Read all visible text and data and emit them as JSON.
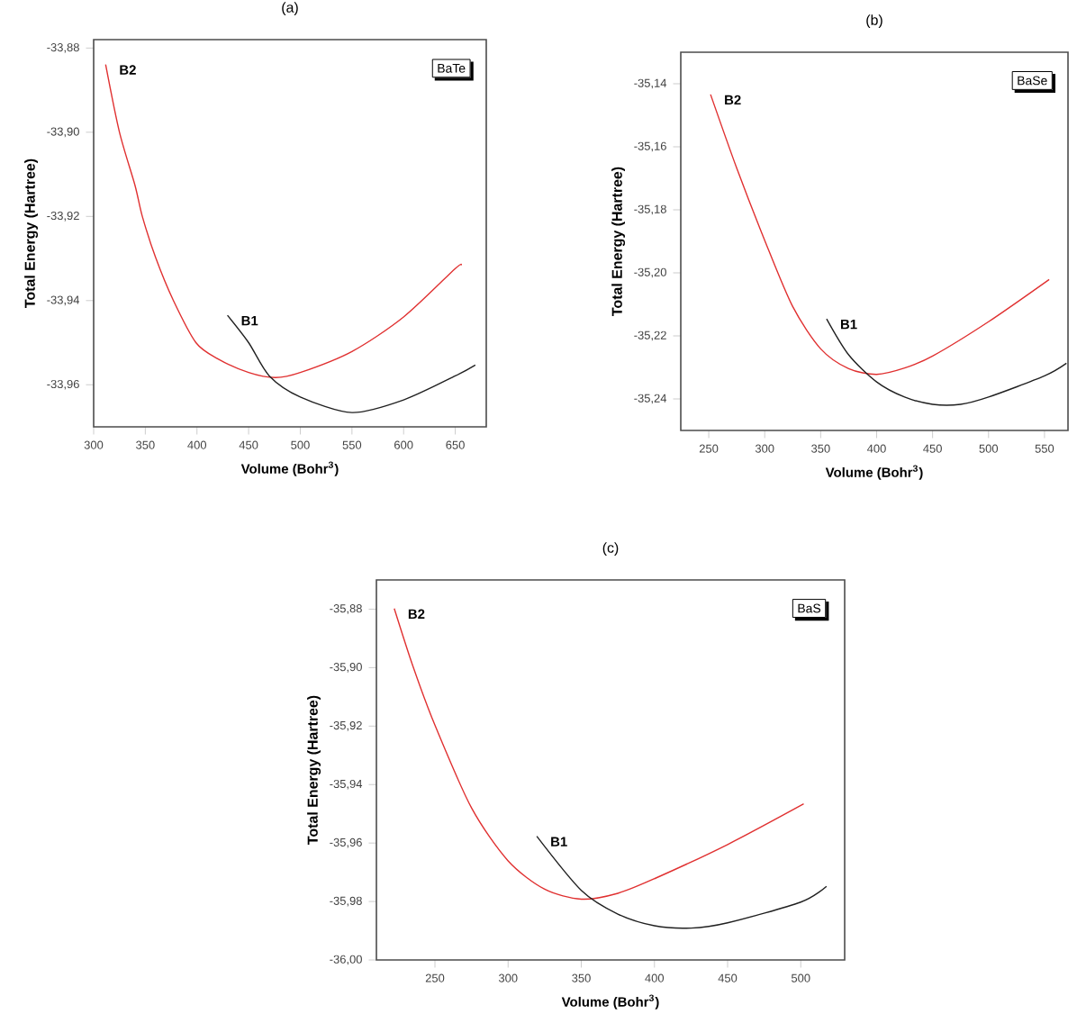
{
  "chart_data": [
    {
      "type": "line",
      "title": "(a)",
      "xlabel": "Volume (Bohr$^{3}$)",
      "ylabel": "Total Energy (Hartree)",
      "annotations": [
        "BaTe"
      ],
      "xlim": [
        300,
        680
      ],
      "ylim": [
        -33.97,
        -33.878
      ],
      "xticks": [
        300,
        350,
        400,
        450,
        500,
        550,
        600,
        650
      ],
      "yticks": [
        {
          "value": -33.96,
          "label": "-33,96"
        },
        {
          "value": -33.94,
          "label": "-33,94"
        },
        {
          "value": -33.92,
          "label": "-33,92"
        },
        {
          "value": -33.9,
          "label": "-33,90"
        },
        {
          "value": -33.88,
          "label": "-33,88"
        }
      ],
      "series": [
        {
          "name": "B2",
          "color": "#e03030",
          "x": [
            311.6,
            325,
            340,
            347,
            360,
            377,
            399,
            420,
            450,
            476,
            500,
            550,
            600,
            650,
            655.6
          ],
          "values": [
            -33.8839,
            -33.9,
            -33.9126,
            -33.9199,
            -33.9298,
            -33.9399,
            -33.95,
            -33.9538,
            -33.9571,
            -33.9583,
            -33.9571,
            -33.9521,
            -33.9439,
            -33.9324,
            -33.9316
          ]
        },
        {
          "name": "B1",
          "color": "#202020",
          "x": [
            429.5,
            450,
            470,
            500,
            550,
            600,
            650,
            669.4
          ],
          "values": [
            -33.9435,
            -33.95,
            -33.9579,
            -33.9629,
            -33.9666,
            -33.9636,
            -33.9579,
            -33.9553
          ]
        }
      ]
    },
    {
      "type": "line",
      "title": "(b)",
      "xlabel": "Volume (Bohr$^{3}$)",
      "ylabel": "Total Energy (Hartree)",
      "annotations": [
        "BaSe"
      ],
      "xlim": [
        225,
        571
      ],
      "ylim": [
        -35.25,
        -35.13
      ],
      "xticks": [
        250,
        300,
        350,
        400,
        450,
        500,
        550
      ],
      "yticks": [
        {
          "value": -35.24,
          "label": "-35,24"
        },
        {
          "value": -35.22,
          "label": "-35,22"
        },
        {
          "value": -35.2,
          "label": "-35,20"
        },
        {
          "value": -35.18,
          "label": "-35,18"
        },
        {
          "value": -35.16,
          "label": "-35,16"
        },
        {
          "value": -35.14,
          "label": "-35,14"
        }
      ],
      "series": [
        {
          "name": "B2",
          "color": "#e03030",
          "x": [
            251.6,
            275,
            300,
            325,
            350,
            375,
            400,
            425,
            450,
            500,
            554.2
          ],
          "values": [
            -35.1434,
            -35.1668,
            -35.1897,
            -35.2107,
            -35.2241,
            -35.2304,
            -35.2322,
            -35.2302,
            -35.2264,
            -35.2155,
            -35.2021
          ]
        },
        {
          "name": "B1",
          "color": "#202020",
          "x": [
            355.3,
            375,
            400,
            425,
            450,
            475,
            500,
            550,
            569.6
          ],
          "values": [
            -35.2146,
            -35.226,
            -35.2346,
            -35.2394,
            -35.2417,
            -35.2417,
            -35.2394,
            -35.2327,
            -35.2287
          ]
        }
      ]
    },
    {
      "type": "line",
      "title": "(c)",
      "xlabel": "Volume (Bohr$^{3}$)",
      "ylabel": "Total Energy (Hartree)",
      "annotations": [
        "BaS"
      ],
      "xlim": [
        210,
        530
      ],
      "ylim": [
        -36.0,
        -35.87
      ],
      "xticks": [
        250,
        300,
        350,
        400,
        450,
        500
      ],
      "yticks": [
        {
          "value": -36.0,
          "label": "-36,00"
        },
        {
          "value": -35.98,
          "label": "-35,98"
        },
        {
          "value": -35.96,
          "label": "-35,96"
        },
        {
          "value": -35.94,
          "label": "-35,94"
        },
        {
          "value": -35.92,
          "label": "-35,92"
        },
        {
          "value": -35.9,
          "label": "-35,90"
        },
        {
          "value": -35.88,
          "label": "-35,88"
        }
      ],
      "series": [
        {
          "name": "B2",
          "color": "#e03030",
          "x": [
            222.2,
            235,
            250,
            275,
            300,
            325,
            350,
            375,
            400,
            450,
            502
          ],
          "values": [
            -35.8798,
            -35.8996,
            -35.9197,
            -35.948,
            -35.9661,
            -35.9758,
            -35.9792,
            -35.9772,
            -35.9722,
            -35.9605,
            -35.9466
          ]
        },
        {
          "name": "B1",
          "color": "#202020",
          "x": [
            319.6,
            350,
            375,
            400,
            425,
            450,
            500,
            517.6
          ],
          "values": [
            -35.9577,
            -35.9762,
            -35.9843,
            -35.9883,
            -35.9891,
            -35.9873,
            -35.9802,
            -35.9748
          ]
        }
      ]
    }
  ]
}
